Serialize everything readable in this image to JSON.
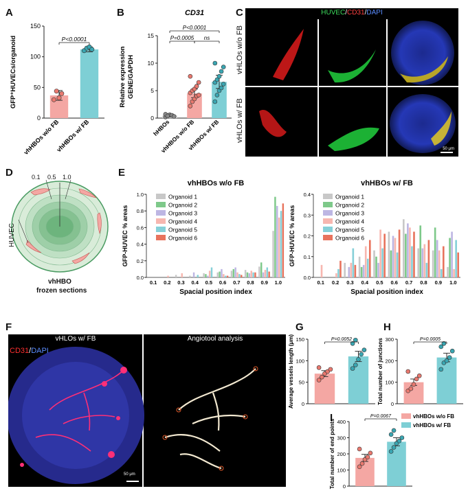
{
  "panels": {
    "A": "A",
    "B": "B",
    "C": "C",
    "D": "D",
    "E": "E",
    "F": "F",
    "G": "G",
    "H": "H",
    "I": "I"
  },
  "colors": {
    "wo": "#f4a7a3",
    "wo_dot": "#e9796f",
    "w": "#7ecfd5",
    "w_dot": "#3aa6b2",
    "h": "#c8c8c8"
  },
  "panelC": {
    "header_parts": [
      "HUVEC",
      "/",
      "CD31",
      "/",
      "DAPI"
    ],
    "row_labels": [
      "vHLOs w/o FB",
      "vHLOs w/ FB"
    ],
    "scale_bar": "50 μm"
  },
  "panelD": {
    "positions": [
      "0.1",
      "0.5",
      "1.0"
    ],
    "side_label": "HUVEC",
    "caption_line1": "vhHBO",
    "caption_line2": "frozen sections"
  },
  "panelF": {
    "left_title": "vHLOs w/ FB",
    "right_title": "Angiotool analysis",
    "stain_parts": [
      "CD31",
      "/",
      "DAPI"
    ],
    "scale_bar": "50 μm"
  },
  "chart_data": [
    {
      "id": "A",
      "type": "bar",
      "categories": [
        "vhHBOs w/o FB",
        "vhHBOs w/ FB"
      ],
      "values": [
        37,
        112
      ],
      "errors": [
        8,
        4
      ],
      "points": [
        [
          30,
          44,
          33,
          40
        ],
        [
          110,
          114,
          116,
          112
        ]
      ],
      "ylabel": "GFP⁺HUVECs/organoid",
      "ylim": [
        0,
        150
      ],
      "yticks": [
        0,
        50,
        100,
        150
      ],
      "annotations": [
        {
          "text": "P<0.0001",
          "between": [
            0,
            1
          ]
        }
      ]
    },
    {
      "id": "B",
      "type": "bar",
      "title": "CD31",
      "categories": [
        "hHBOs",
        "vhHBOs w/o FB",
        "vhHBOs w/ FB"
      ],
      "values": [
        0.5,
        4.5,
        6.6
      ],
      "errors": [
        0.3,
        0.8,
        1.2
      ],
      "points": [
        [
          0.2,
          0.4,
          0.6,
          0.5,
          0.3,
          0.7,
          0.4
        ],
        [
          2.2,
          3.0,
          3.5,
          4.0,
          4.2,
          4.6,
          5.0,
          5.3,
          5.8,
          6.5,
          7.6
        ],
        [
          3.0,
          4.2,
          5.0,
          5.5,
          6.2,
          6.5,
          7.0,
          7.6,
          8.5,
          9.3,
          10.0
        ]
      ],
      "ylabel_line1": "Relative expression",
      "ylabel_line2": "GENE/GAPDH",
      "ylim": [
        0,
        15
      ],
      "yticks": [
        0,
        5,
        10,
        15
      ],
      "annotations": [
        {
          "text": "P<0.0001",
          "between": [
            0,
            2
          ]
        },
        {
          "text": "P=0.0005",
          "between": [
            0,
            1
          ]
        },
        {
          "text": "ns",
          "between": [
            1,
            2
          ]
        }
      ]
    },
    {
      "id": "E1",
      "type": "bar",
      "title": "vhHBOs w/o FB",
      "xlabel": "Spacial position index",
      "ylabel": "GFP-HUVEC % areas",
      "categories": [
        "0.1",
        "0.2",
        "0.3",
        "0.4",
        "0.5",
        "0.6",
        "0.7",
        "0.8",
        "0.9",
        "1.0"
      ],
      "ylim": [
        0,
        1.0
      ],
      "yticks": [
        "0.0",
        "0.2",
        "0.4",
        "0.6",
        "0.8",
        "1.0"
      ],
      "series": [
        {
          "name": "Organoid 1",
          "color": "#c8c8c8",
          "values": [
            0,
            0,
            0.03,
            0.02,
            0.05,
            0.06,
            0.08,
            0.09,
            0.13,
            0.56
          ]
        },
        {
          "name": "Organoid 2",
          "color": "#7ec98a",
          "values": [
            0,
            0,
            0,
            0,
            0.04,
            0.07,
            0.1,
            0.06,
            0.18,
            0.97
          ]
        },
        {
          "name": "Organoid 3",
          "color": "#bdb6e3",
          "values": [
            0,
            0,
            0,
            0.06,
            0.02,
            0.1,
            0.12,
            0.05,
            0.06,
            0.86
          ]
        },
        {
          "name": "Organoid 4",
          "color": "#f7b7b0",
          "values": [
            0,
            0.02,
            0.05,
            0,
            0.08,
            0.04,
            0.06,
            0.08,
            0.09,
            0.72
          ]
        },
        {
          "name": "Organoid 5",
          "color": "#86d0d8",
          "values": [
            0,
            0,
            0,
            0.03,
            0.12,
            0.02,
            0.04,
            0.06,
            0.12,
            0.8
          ]
        },
        {
          "name": "Organoid 6",
          "color": "#e8735d",
          "values": [
            0,
            0,
            0,
            0,
            0,
            0.02,
            0.03,
            0.06,
            0.07,
            0.89
          ]
        }
      ]
    },
    {
      "id": "E2",
      "type": "bar",
      "title": "vhHBOs w/ FB",
      "xlabel": "Spacial position index",
      "ylabel": "GFP-HUVEC % areas",
      "categories": [
        "0.1",
        "0.2",
        "0.3",
        "0.4",
        "0.5",
        "0.6",
        "0.7",
        "0.8",
        "0.9",
        "1.0"
      ],
      "ylim": [
        0,
        0.4
      ],
      "yticks": [
        "0.0",
        "0.1",
        "0.2",
        "0.3",
        "0.4"
      ],
      "series": [
        {
          "name": "Organoid 1",
          "color": "#c8c8c8",
          "values": [
            0,
            0,
            0.07,
            0.1,
            0.13,
            0.22,
            0.28,
            0.14,
            0.13,
            0.05
          ]
        },
        {
          "name": "Organoid 2",
          "color": "#7ec98a",
          "values": [
            0,
            0,
            0,
            0.05,
            0.1,
            0.13,
            0.21,
            0.25,
            0.24,
            0.19
          ]
        },
        {
          "name": "Organoid 3",
          "color": "#bdb6e3",
          "values": [
            0,
            0,
            0.05,
            0.06,
            0.07,
            0.2,
            0.26,
            0.14,
            0.18,
            0.22
          ]
        },
        {
          "name": "Organoid 4",
          "color": "#f7b7b0",
          "values": [
            0.06,
            0.02,
            0.07,
            0.15,
            0.23,
            0.19,
            0.24,
            0.16,
            0.13,
            0.04
          ]
        },
        {
          "name": "Organoid 5",
          "color": "#86d0d8",
          "values": [
            0,
            0.04,
            0.14,
            0.09,
            0.14,
            0.12,
            0.15,
            0.07,
            0.04,
            0.18
          ]
        },
        {
          "name": "Organoid 6",
          "color": "#e8735d",
          "values": [
            0,
            0.08,
            0.06,
            0.18,
            0.21,
            0.23,
            0.22,
            0.18,
            0.15,
            0.12
          ]
        }
      ]
    },
    {
      "id": "G",
      "type": "bar",
      "categories": [
        "vhHBOs w/o FB",
        "vhHBOs w/ FB"
      ],
      "values": [
        70,
        110
      ],
      "errors": [
        7,
        12
      ],
      "points": [
        [
          55,
          62,
          70,
          75,
          80,
          84
        ],
        [
          82,
          90,
          103,
          115,
          125,
          140,
          148
        ]
      ],
      "ylabel": "Average vessels length (μm)",
      "ylim": [
        0,
        150
      ],
      "yticks": [
        0,
        50,
        100,
        150
      ],
      "annotations": [
        {
          "text": "P=0.0052",
          "between": [
            0,
            1
          ]
        }
      ]
    },
    {
      "id": "H",
      "type": "bar",
      "categories": [
        "vhHBOs w/o FB",
        "vhHBOs w/ FB"
      ],
      "values": [
        100,
        215
      ],
      "errors": [
        15,
        20
      ],
      "points": [
        [
          60,
          70,
          90,
          115,
          130,
          150
        ],
        [
          160,
          190,
          200,
          215,
          245,
          265,
          280
        ]
      ],
      "ylabel": "Total number of junctions",
      "ylim": [
        0,
        300
      ],
      "yticks": [
        0,
        100,
        200,
        300
      ],
      "annotations": [
        {
          "text": "P=0.0005",
          "between": [
            0,
            1
          ]
        }
      ]
    },
    {
      "id": "I",
      "type": "bar",
      "categories": [
        "vhHBOs w/o FB",
        "vhHBOs w/ FB"
      ],
      "values": [
        175,
        275
      ],
      "errors": [
        22,
        25
      ],
      "points": [
        [
          120,
          140,
          165,
          180,
          205,
          230
        ],
        [
          215,
          240,
          265,
          280,
          300,
          320,
          345
        ]
      ],
      "ylabel": "Total number of end points",
      "ylim": [
        0,
        400
      ],
      "yticks": [
        0,
        100,
        200,
        300,
        400
      ],
      "annotations": [
        {
          "text": "P=0.0067",
          "between": [
            0,
            1
          ]
        }
      ],
      "legend": [
        "vhHBOs w/o FB",
        "vhHBOs w/ FB"
      ]
    }
  ]
}
